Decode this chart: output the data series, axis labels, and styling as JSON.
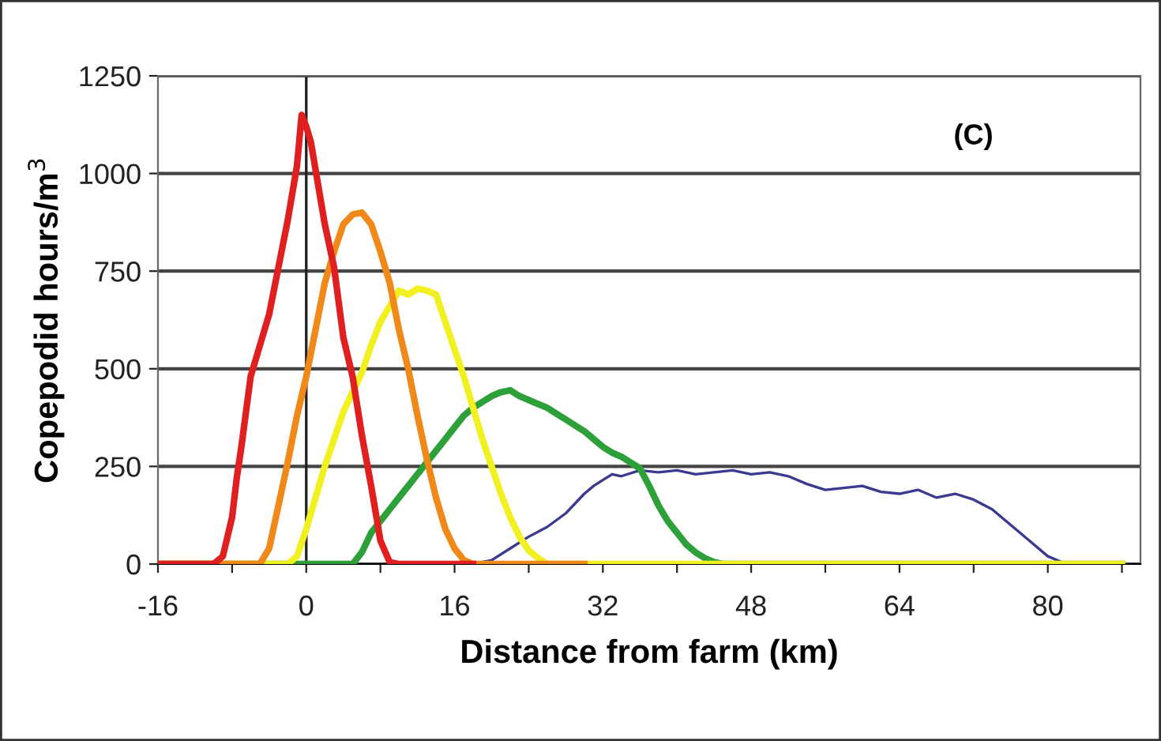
{
  "chart_data": {
    "type": "line",
    "xlabel": "Distance from farm (km)",
    "ylabel": "Copepodid hours/m$^{3}$",
    "annotations": [
      "(C)"
    ],
    "xlim": [
      -16,
      90
    ],
    "ylim": [
      0,
      1250
    ],
    "xticks": [
      -16,
      {
        "value": -8,
        "label": null
      },
      0,
      {
        "value": 8,
        "label": null
      },
      16,
      {
        "value": 24,
        "label": null
      },
      32,
      {
        "value": 40,
        "label": null
      },
      48,
      {
        "value": 56,
        "label": null
      },
      64,
      {
        "value": 72,
        "label": null
      },
      80,
      {
        "value": 88,
        "label": null
      }
    ],
    "yticks": [
      0,
      250,
      500,
      750,
      1000,
      1250
    ],
    "ref_lines": [
      {
        "axis": "x",
        "value": 0,
        "color": "#222222"
      }
    ],
    "grid": "y",
    "marker": "none",
    "line_style": "solid",
    "series": [
      {
        "color": "#3a3a90",
        "x": [
          18,
          20,
          22,
          24,
          26,
          28,
          30,
          31,
          32,
          33,
          34,
          36,
          38,
          40,
          42,
          44,
          46,
          48,
          50,
          52,
          54,
          56,
          58,
          60,
          62,
          64,
          66,
          68,
          70,
          72,
          74,
          76,
          78,
          80,
          82,
          88
        ],
        "values": [
          0,
          10,
          40,
          70,
          95,
          130,
          180,
          200,
          215,
          230,
          225,
          240,
          235,
          240,
          230,
          235,
          240,
          230,
          235,
          225,
          205,
          190,
          195,
          200,
          185,
          180,
          190,
          170,
          180,
          165,
          140,
          100,
          60,
          20,
          0,
          0
        ]
      },
      {
        "color": "#2ea03a",
        "x": [
          -16,
          5,
          6,
          7,
          8,
          9,
          10,
          11,
          12,
          13,
          14,
          15,
          16,
          17,
          18,
          19,
          20,
          21,
          22,
          23,
          24,
          25,
          26,
          27,
          28,
          29,
          30,
          31,
          32,
          33,
          34,
          35,
          36,
          37,
          38,
          39,
          40,
          41,
          42,
          43,
          44,
          45,
          88
        ],
        "values": [
          0,
          0,
          30,
          80,
          110,
          140,
          170,
          200,
          230,
          260,
          290,
          320,
          350,
          380,
          400,
          415,
          430,
          440,
          445,
          430,
          420,
          410,
          400,
          385,
          370,
          355,
          340,
          320,
          300,
          285,
          275,
          260,
          245,
          200,
          150,
          110,
          80,
          50,
          30,
          15,
          5,
          0,
          0
        ]
      },
      {
        "color": "#f2f020",
        "x": [
          -16,
          -2,
          -1,
          0,
          1,
          2,
          3,
          4,
          5,
          6,
          7,
          8,
          9,
          10,
          11,
          12,
          13,
          14,
          15,
          16,
          17,
          18,
          19,
          20,
          21,
          22,
          23,
          24,
          25,
          26,
          88
        ],
        "values": [
          0,
          0,
          20,
          90,
          170,
          250,
          320,
          390,
          440,
          490,
          560,
          620,
          660,
          700,
          690,
          705,
          700,
          690,
          620,
          550,
          480,
          400,
          320,
          250,
          180,
          120,
          70,
          35,
          15,
          0,
          0
        ]
      },
      {
        "color": "#f0881a",
        "x": [
          -16,
          -5,
          -4,
          -3,
          -2,
          -1,
          0,
          1,
          2,
          3,
          4,
          5,
          6,
          7,
          8,
          9,
          10,
          11,
          12,
          13,
          14,
          15,
          16,
          17,
          18,
          30
        ],
        "values": [
          0,
          0,
          40,
          150,
          260,
          380,
          480,
          600,
          720,
          800,
          870,
          895,
          900,
          870,
          800,
          720,
          600,
          500,
          380,
          270,
          170,
          90,
          40,
          10,
          0,
          0
        ]
      },
      {
        "color": "#e02020",
        "x": [
          -16,
          -10,
          -9,
          -8,
          -7.5,
          -7,
          -6,
          -5,
          -4,
          -3,
          -2,
          -1,
          -0.5,
          0,
          0.5,
          1,
          2,
          3,
          4,
          5,
          6,
          7,
          8,
          9,
          10,
          18
        ],
        "values": [
          0,
          0,
          20,
          120,
          220,
          300,
          480,
          560,
          640,
          760,
          880,
          1020,
          1150,
          1120,
          1080,
          1010,
          870,
          760,
          580,
          480,
          330,
          200,
          60,
          5,
          0,
          0
        ]
      }
    ]
  }
}
